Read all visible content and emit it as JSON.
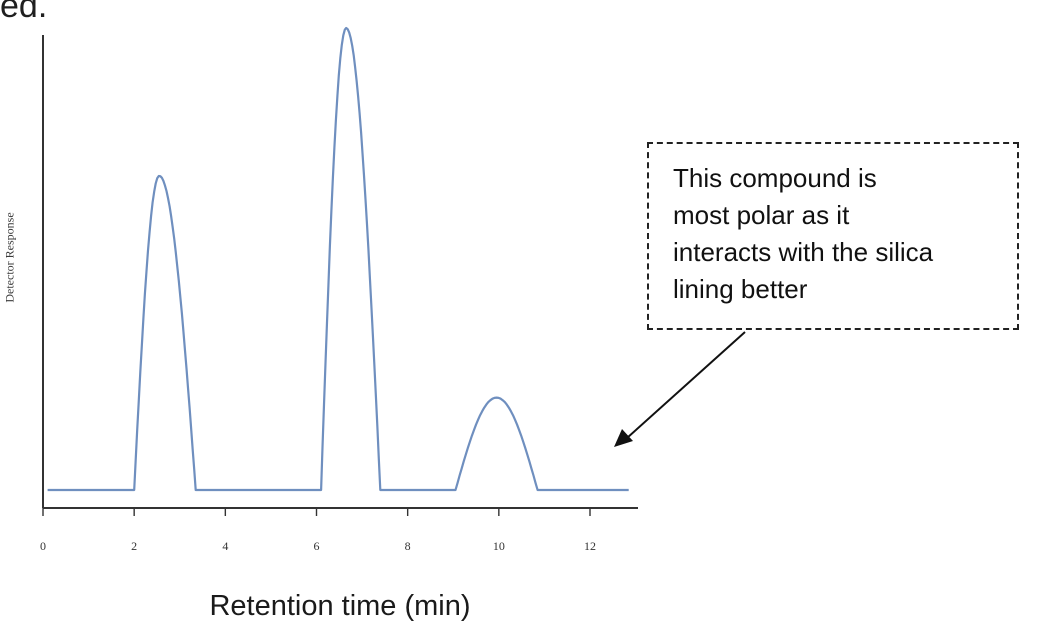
{
  "page_text": {
    "cut_word": "ed."
  },
  "chart_data": {
    "type": "line",
    "title": "",
    "xlabel": "Retention time (min)",
    "ylabel": "Detector Response",
    "xlim": [
      0,
      13
    ],
    "x_ticks": [
      0,
      2,
      4,
      6,
      8,
      10,
      12
    ],
    "series": [
      {
        "color": "#6f8fbf",
        "baseline": 0,
        "peaks": [
          {
            "start": 2.0,
            "apex": 2.55,
            "end": 3.35,
            "height": 0.68
          },
          {
            "start": 6.1,
            "apex": 6.65,
            "end": 7.4,
            "height": 1.0
          },
          {
            "start": 9.05,
            "apex": 9.95,
            "end": 10.85,
            "height": 0.2
          }
        ]
      }
    ],
    "annotation": {
      "text_lines": [
        "This compound is",
        "most polar as it",
        "interacts with the silica",
        "lining better"
      ]
    },
    "grid": false,
    "legend": "none"
  }
}
